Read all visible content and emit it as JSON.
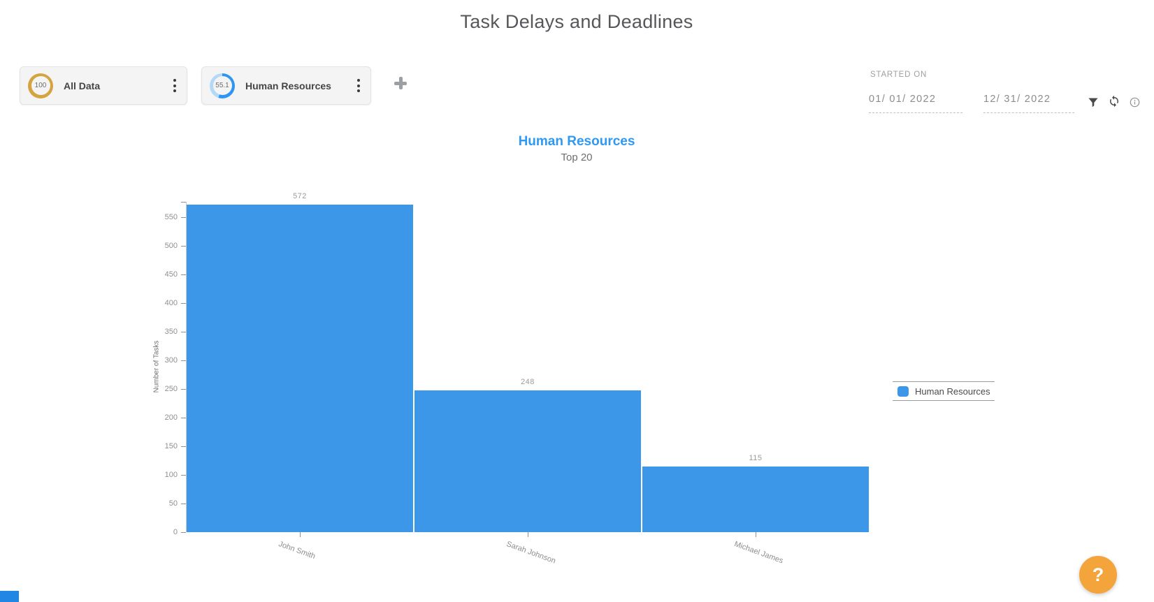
{
  "window": {
    "title": "Task Delays and Deadlines"
  },
  "filter_cards": [
    {
      "label": "All Data",
      "score": "100",
      "ring": {
        "color": "#D4A440",
        "track": "#D4A440",
        "percent": 100
      }
    },
    {
      "label": "Human Resources",
      "score": "55.1",
      "ring": {
        "color": "#2E96F0",
        "track": "#B3D9F7",
        "percent": 55.1
      }
    }
  ],
  "add_widget": {
    "tooltip": "add-filter"
  },
  "date_filter": {
    "label": "STARTED ON",
    "start": "01/ 01/ 2022",
    "end": "12/ 31/ 2022"
  },
  "chart": {
    "title": "Human Resources",
    "subtitle": "Top 20"
  },
  "chart_data": {
    "type": "bar",
    "title": "Human Resources",
    "subtitle": "Top 20",
    "categories": [
      "John Smith",
      "Sarah Johnson",
      "Michael James"
    ],
    "values": [
      572,
      248,
      115
    ],
    "xlabel": "",
    "ylabel": "Number of Tasks",
    "ylim": [
      0,
      580
    ],
    "yticks": [
      0,
      50,
      100,
      150,
      200,
      250,
      300,
      350,
      400,
      450,
      500,
      550
    ],
    "bar_color": "#3D97E8",
    "grid": false,
    "value_labels": true,
    "legend_position": "right",
    "legend": [
      {
        "label": "Human Resources",
        "color": "#3D97E8"
      }
    ]
  },
  "help_button": {
    "label": "?"
  },
  "colors": {
    "accent_blue": "#2F98F3",
    "bar_blue": "#3D97E8",
    "ring_gold": "#D4A440",
    "help_orange": "#F3A43B"
  }
}
